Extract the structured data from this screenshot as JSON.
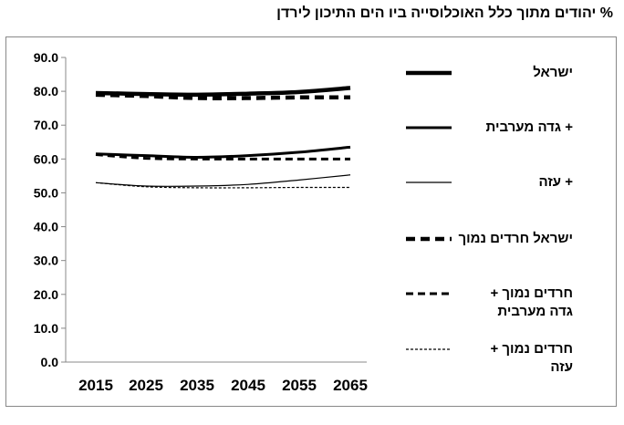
{
  "title": "% יהודים מתוך כלל האוכלוסייה ביו הים התיכון לירדן",
  "chart_data": {
    "type": "line",
    "title": "% יהודים מתוך כלל האוכלוסייה ביו הים התיכון לירדן",
    "x": [
      2015,
      2025,
      2035,
      2045,
      2055,
      2065
    ],
    "xticks": [
      "2015",
      "2025",
      "2035",
      "2045",
      "2055",
      "2065"
    ],
    "yticks": [
      "0.0",
      "10.0",
      "20.0",
      "30.0",
      "40.0",
      "50.0",
      "60.0",
      "70.0",
      "80.0",
      "90.0"
    ],
    "ylim": [
      0,
      90
    ],
    "grid": false,
    "legend_position": "right",
    "series": [
      {
        "name": "ישראל",
        "values": [
          79.5,
          79.2,
          79.0,
          79.3,
          79.8,
          81.0
        ],
        "style": "thick-solid"
      },
      {
        "name": "+ גדה מערבית",
        "values": [
          61.5,
          61.0,
          60.5,
          61.0,
          62.0,
          63.5
        ],
        "style": "medium-solid"
      },
      {
        "name": "+ עזה",
        "values": [
          53.0,
          52.0,
          52.0,
          52.5,
          53.8,
          55.3
        ],
        "style": "thin-solid"
      },
      {
        "name": "ישראל חרדים נמוך",
        "values": [
          79.0,
          78.6,
          78.0,
          78.0,
          78.2,
          78.2
        ],
        "style": "thick-dash"
      },
      {
        "name": "חרדים נמוך + גדה מערבית",
        "values": [
          61.3,
          60.2,
          60.0,
          60.0,
          60.0,
          60.0
        ],
        "style": "medium-dash"
      },
      {
        "name": "חרדים נמוך + עזה",
        "values": [
          53.0,
          51.8,
          51.5,
          51.5,
          51.6,
          51.6
        ],
        "style": "thin-dash"
      }
    ]
  },
  "legend": [
    {
      "lines": [
        "ישראל"
      ]
    },
    {
      "lines": [
        "+ גדה מערבית"
      ]
    },
    {
      "lines": [
        "+ עזה"
      ]
    },
    {
      "lines": [
        "ישראל חרדים נמוך"
      ]
    },
    {
      "lines": [
        "חרדים נמוך +",
        "גדה מערבית"
      ]
    },
    {
      "lines": [
        "חרדים נמוך +",
        "עזה"
      ]
    }
  ]
}
